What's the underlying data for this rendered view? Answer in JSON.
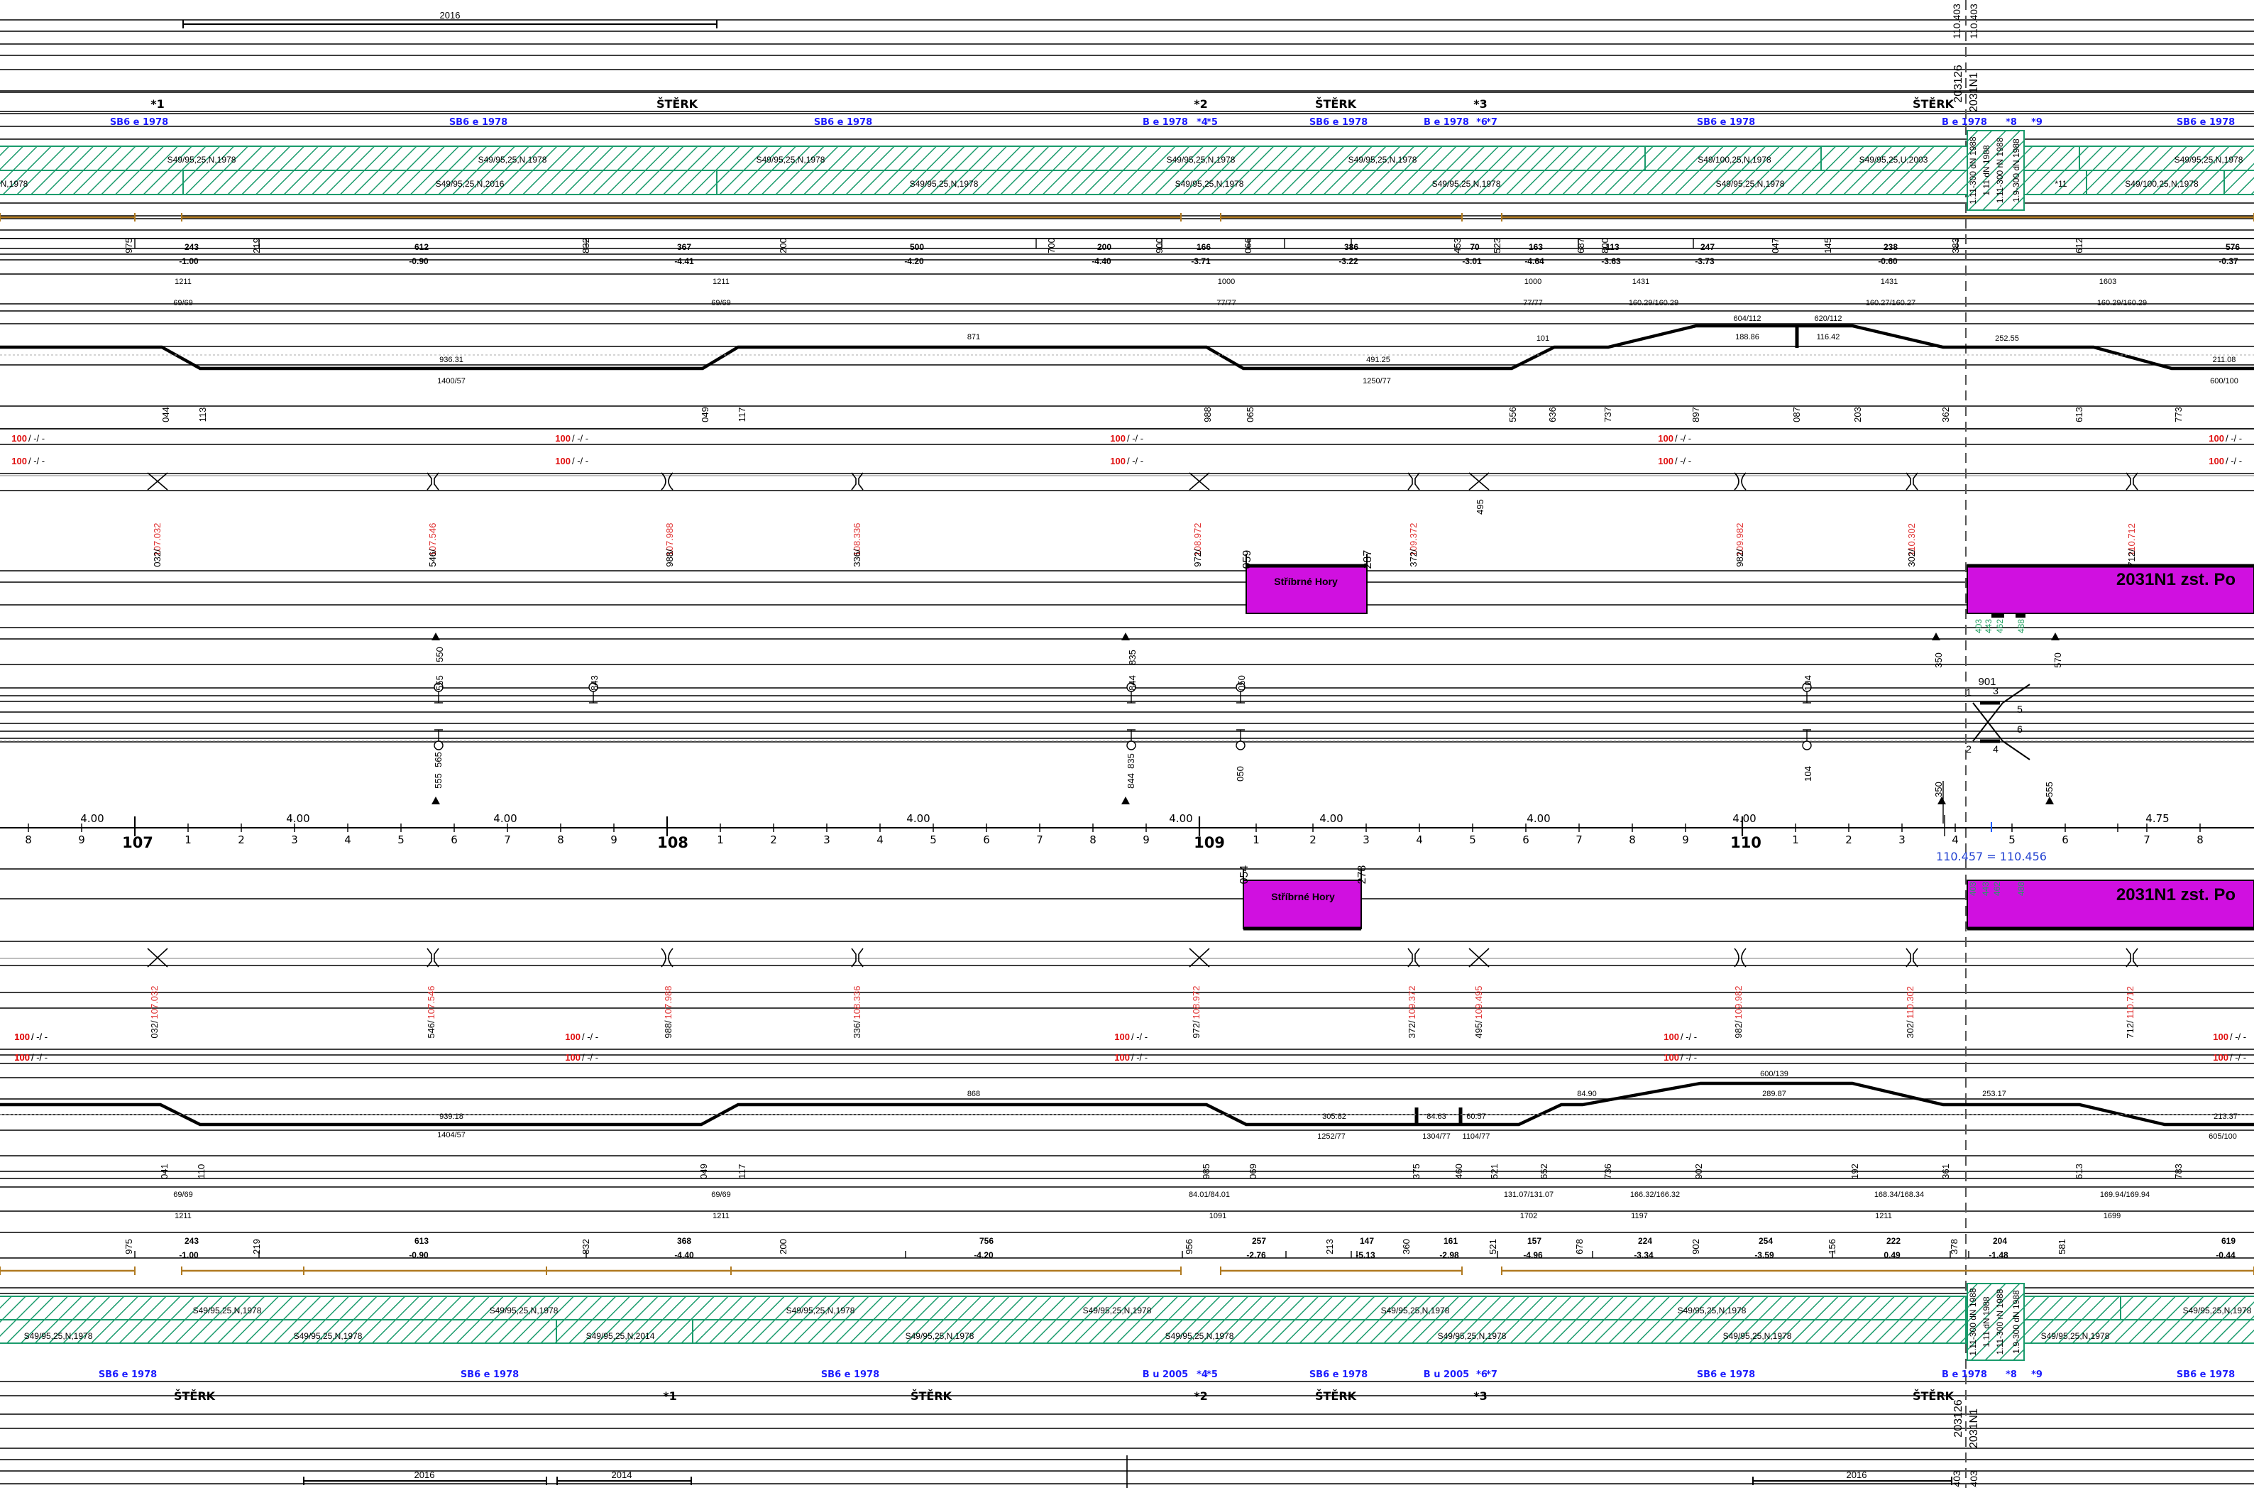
{
  "top_years": [
    {
      "text": "2016"
    }
  ],
  "top_codes": [
    {
      "text": "110.403"
    },
    {
      "text": "110.403"
    },
    {
      "text": "203126"
    },
    {
      "text": "2031N1"
    }
  ],
  "top_surface": [
    {
      "text": "*1"
    },
    {
      "text": "ŠTĚRK"
    },
    {
      "text": "*2"
    },
    {
      "text": "ŠTĚRK"
    },
    {
      "text": "*3"
    },
    {
      "text": "ŠTĚRK"
    }
  ],
  "top_sleepers": [
    {
      "text": "SB6 e 1978"
    },
    {
      "text": "SB6 e 1978"
    },
    {
      "text": "SB6 e 1978"
    },
    {
      "text": "B e 1978"
    },
    {
      "text": "*4"
    },
    {
      "text": "*5"
    },
    {
      "text": "SB6 e 1978"
    },
    {
      "text": "B e 1978"
    },
    {
      "text": "*6"
    },
    {
      "text": "*7"
    },
    {
      "text": "SB6 e 1978"
    },
    {
      "text": "B e 1978"
    },
    {
      "text": "*8"
    },
    {
      "text": "*9"
    },
    {
      "text": "SB6 e 1978"
    }
  ],
  "top_rails_a": [
    {
      "text": "S49/95,25,N,1978"
    },
    {
      "text": "S49/95,25,N,1978"
    },
    {
      "text": "S49/95,25,N,1978"
    },
    {
      "text": "S49/95,25,N,1978"
    },
    {
      "text": "S49/95,25,N,1978"
    },
    {
      "text": "S49/100,25,N,1978"
    },
    {
      "text": "S49/95,25,U,2003"
    },
    {
      "text": "S49/95,25,N,1978"
    }
  ],
  "top_rails_b": [
    {
      "text": "N,1978"
    },
    {
      "text": "S49/95,25,N,2016"
    },
    {
      "text": "S49/95,25,N,1978"
    },
    {
      "text": "S49/95,25,N,1978"
    },
    {
      "text": "S49/95,25,N,1978"
    },
    {
      "text": "S49/95,25,N,1978"
    },
    {
      "text": "*11"
    },
    {
      "text": "S49/100,25,N,1978"
    }
  ],
  "top_rot_rails": [
    {
      "text": "1.11-300 dN 1988"
    },
    {
      "text": "1.11 dN 1988"
    },
    {
      "text": "1.11-300 rN 1988"
    },
    {
      "text": "1.9-300 dN 1988"
    }
  ],
  "top_grade_km": [
    {
      "text": "975"
    },
    {
      "text": "219"
    },
    {
      "text": "832"
    },
    {
      "text": "200"
    },
    {
      "text": "700"
    },
    {
      "text": "900"
    },
    {
      "text": "066"
    },
    {
      "text": "453"
    },
    {
      "text": "523"
    },
    {
      "text": "687"
    },
    {
      "text": "800"
    },
    {
      "text": "047"
    },
    {
      "text": "145"
    },
    {
      "text": "383"
    },
    {
      "text": "612"
    }
  ],
  "top_grade_vals": [
    {
      "text": "243"
    },
    {
      "text": "-1.00"
    },
    {
      "text": "612"
    },
    {
      "text": "-0.90"
    },
    {
      "text": "367"
    },
    {
      "text": "-4.41"
    },
    {
      "text": "500"
    },
    {
      "text": "-4.20"
    },
    {
      "text": "200"
    },
    {
      "text": "-4.40"
    },
    {
      "text": "166"
    },
    {
      "text": "-3.71"
    },
    {
      "text": "386"
    },
    {
      "text": "-3.22"
    },
    {
      "text": "70"
    },
    {
      "text": "-3.01"
    },
    {
      "text": "163"
    },
    {
      "text": "-4.64"
    },
    {
      "text": "113"
    },
    {
      "text": "-3.63"
    },
    {
      "text": "247"
    },
    {
      "text": "-3.73"
    },
    {
      "text": "238"
    },
    {
      "text": "-0.60"
    },
    {
      "text": "576"
    },
    {
      "text": "-0.37"
    }
  ],
  "top_radius_a": [
    {
      "text": "1211"
    },
    {
      "text": "1211"
    },
    {
      "text": "1000"
    },
    {
      "text": "1000"
    },
    {
      "text": "1431"
    },
    {
      "text": "1431"
    },
    {
      "text": "1603"
    }
  ],
  "top_radius_b": [
    {
      "text": "69/69"
    },
    {
      "text": "69/69"
    },
    {
      "text": "77/77"
    },
    {
      "text": "77/77"
    },
    {
      "text": "160.29/160.29"
    },
    {
      "text": "160.27/160.27"
    },
    {
      "text": "160.29/160.29"
    }
  ],
  "top_curve_labels": [
    {
      "text": "871"
    },
    {
      "text": "936.31"
    },
    {
      "text": "1400/57"
    },
    {
      "text": "491.25"
    },
    {
      "text": "1250/77"
    },
    {
      "text": "101"
    },
    {
      "text": "604/112"
    },
    {
      "text": "188.86"
    },
    {
      "text": "620/112"
    },
    {
      "text": "116.42"
    },
    {
      "text": "252.55"
    },
    {
      "text": "211.08"
    },
    {
      "text": "600/100"
    }
  ],
  "top_curve_km": [
    {
      "text": "044"
    },
    {
      "text": "113"
    },
    {
      "text": "049"
    },
    {
      "text": "117"
    },
    {
      "text": "988"
    },
    {
      "text": "065"
    },
    {
      "text": "556"
    },
    {
      "text": "636"
    },
    {
      "text": "737"
    },
    {
      "text": "897"
    },
    {
      "text": "087"
    },
    {
      "text": "203"
    },
    {
      "text": "362"
    },
    {
      "text": "613"
    },
    {
      "text": "773"
    }
  ],
  "top_speed_red": [
    {
      "text": "100"
    },
    {
      "text": "100"
    },
    {
      "text": "100"
    },
    {
      "text": "100"
    },
    {
      "text": "100"
    },
    {
      "text": "100"
    },
    {
      "text": "100"
    },
    {
      "text": "100"
    },
    {
      "text": "100"
    },
    {
      "text": "100"
    }
  ],
  "top_speed_rest": [
    {
      "text": "/ -/ -"
    },
    {
      "text": "/ -/ -"
    },
    {
      "text": "/ -/ -"
    },
    {
      "text": "/ -/ -"
    },
    {
      "text": "/ -/ -"
    },
    {
      "text": "/ -/ -"
    },
    {
      "text": "/ -/ -"
    },
    {
      "text": "/ -/ -"
    },
    {
      "text": "/ -/ -"
    },
    {
      "text": "/ -/ -"
    }
  ],
  "top_objects_red": [
    {
      "text": "107.032"
    },
    {
      "text": "107.546"
    },
    {
      "text": "107.988"
    },
    {
      "text": "108.336"
    },
    {
      "text": "108.972"
    },
    {
      "text": "109.372"
    },
    {
      "text": "109.982"
    },
    {
      "text": "110.302"
    },
    {
      "text": "110.712"
    }
  ],
  "top_objects_black": [
    {
      "text": "032/"
    },
    {
      "text": "546/"
    },
    {
      "text": "988/"
    },
    {
      "text": "336/"
    },
    {
      "text": "972/"
    },
    {
      "text": "372/"
    },
    {
      "text": "495"
    },
    {
      "text": "982/"
    },
    {
      "text": "302/"
    },
    {
      "text": "712/"
    }
  ],
  "top_platform": [
    {
      "text": "059"
    },
    {
      "text": "287"
    },
    {
      "text": "Stříbrné Hory"
    },
    {
      "text": "2031N1 zst. Po"
    }
  ],
  "top_platform_green": [
    {
      "text": "403"
    },
    {
      "text": "443"
    },
    {
      "text": "462"
    },
    {
      "text": "488"
    }
  ],
  "top_signals": [
    {
      "text": "555"
    },
    {
      "text": "550"
    },
    {
      "text": "843"
    },
    {
      "text": "844"
    },
    {
      "text": "835"
    },
    {
      "text": "050"
    },
    {
      "text": "104"
    },
    {
      "text": "350"
    },
    {
      "text": "570"
    }
  ],
  "switch_labels": [
    {
      "text": "901"
    },
    {
      "text": "1"
    },
    {
      "text": "3"
    },
    {
      "text": "5"
    },
    {
      "text": "2"
    },
    {
      "text": "4"
    },
    {
      "text": "6"
    }
  ],
  "bottom_signals": [
    {
      "text": "555"
    },
    {
      "text": "565"
    },
    {
      "text": "844"
    },
    {
      "text": "835"
    },
    {
      "text": "050"
    },
    {
      "text": "104"
    },
    {
      "text": "350"
    },
    {
      "text": "555"
    }
  ],
  "gradient_mid": [
    {
      "text": "4.00"
    },
    {
      "text": "4.00"
    },
    {
      "text": "4.00"
    },
    {
      "text": "4.00"
    },
    {
      "text": "4.00"
    },
    {
      "text": "4.00"
    },
    {
      "text": "4.00"
    },
    {
      "text": "4.00"
    },
    {
      "text": "4.75"
    }
  ],
  "ruler_km": [
    {
      "text": "107"
    },
    {
      "text": "108"
    },
    {
      "text": "109"
    },
    {
      "text": "110"
    }
  ],
  "ruler_ticks": [
    {
      "text": "8"
    },
    {
      "text": "9"
    },
    {
      "text": "1"
    },
    {
      "text": "2"
    },
    {
      "text": "3"
    },
    {
      "text": "4"
    },
    {
      "text": "5"
    },
    {
      "text": "6"
    },
    {
      "text": "7"
    },
    {
      "text": "8"
    },
    {
      "text": "9"
    },
    {
      "text": "1"
    },
    {
      "text": "2"
    },
    {
      "text": "3"
    },
    {
      "text": "4"
    },
    {
      "text": "5"
    },
    {
      "text": "6"
    },
    {
      "text": "7"
    },
    {
      "text": "8"
    },
    {
      "text": "9"
    },
    {
      "text": "1"
    },
    {
      "text": "2"
    },
    {
      "text": "3"
    },
    {
      "text": "4"
    },
    {
      "text": "5"
    },
    {
      "text": "6"
    },
    {
      "text": "7"
    },
    {
      "text": "8"
    },
    {
      "text": "9"
    },
    {
      "text": "1"
    },
    {
      "text": "2"
    },
    {
      "text": "3"
    },
    {
      "text": "4"
    },
    {
      "text": "5"
    },
    {
      "text": "6"
    },
    {
      "text": "7"
    },
    {
      "text": "8"
    },
    {
      "text": "9"
    }
  ],
  "km_equation": {
    "text": "110.457 = 110.456"
  },
  "bottom_platform": [
    {
      "text": "054"
    },
    {
      "text": "278"
    },
    {
      "text": "Stříbrné Hory"
    },
    {
      "text": "2031N1 zst. Po"
    }
  ],
  "bottom_platform_green": [
    {
      "text": "403"
    },
    {
      "text": "443"
    },
    {
      "text": "462"
    },
    {
      "text": "488"
    }
  ],
  "bottom_objects_red": [
    {
      "text": "107.032"
    },
    {
      "text": "107.546"
    },
    {
      "text": "107.988"
    },
    {
      "text": "108.336"
    },
    {
      "text": "108.972"
    },
    {
      "text": "109.372"
    },
    {
      "text": "109.495"
    },
    {
      "text": "109.982"
    },
    {
      "text": "110.302"
    },
    {
      "text": "110.712"
    }
  ],
  "bottom_objects_black": [
    {
      "text": "032/"
    },
    {
      "text": "546/"
    },
    {
      "text": "988/"
    },
    {
      "text": "336/"
    },
    {
      "text": "972/"
    },
    {
      "text": "372/"
    },
    {
      "text": "495/"
    },
    {
      "text": "982/"
    },
    {
      "text": "302/"
    },
    {
      "text": "712/"
    }
  ],
  "bottom_speed_red": [
    {
      "text": "100"
    },
    {
      "text": "100"
    },
    {
      "text": "100"
    },
    {
      "text": "100"
    },
    {
      "text": "100"
    },
    {
      "text": "100"
    },
    {
      "text": "100"
    },
    {
      "text": "100"
    },
    {
      "text": "100"
    },
    {
      "text": "100"
    },
    {
      "text": "100"
    },
    {
      "text": "100"
    }
  ],
  "bottom_speed_rest": [
    {
      "text": "/ -/ -"
    },
    {
      "text": "/ -/ -"
    },
    {
      "text": "/ -/ -"
    },
    {
      "text": "/ -/ -"
    },
    {
      "text": "/ -/ -"
    },
    {
      "text": "/ -/ -"
    },
    {
      "text": "/ -/ -"
    },
    {
      "text": "/ -/ -"
    },
    {
      "text": "/ -/ -"
    },
    {
      "text": "/ -/ -"
    },
    {
      "text": "/ -/ -"
    },
    {
      "text": "/ -/ -"
    }
  ],
  "bottom_curve_labels": [
    {
      "text": "868"
    },
    {
      "text": "939.18"
    },
    {
      "text": "1404/57"
    },
    {
      "text": "305.82"
    },
    {
      "text": "1252/77"
    },
    {
      "text": "84.63"
    },
    {
      "text": "1304/77"
    },
    {
      "text": "60.57"
    },
    {
      "text": "1104/77"
    },
    {
      "text": "84.90"
    },
    {
      "text": "600/139"
    },
    {
      "text": "289.87"
    },
    {
      "text": "253.17"
    },
    {
      "text": "213.37"
    },
    {
      "text": "605/100"
    }
  ],
  "bottom_curve_km": [
    {
      "text": "041"
    },
    {
      "text": "110"
    },
    {
      "text": "049"
    },
    {
      "text": "117"
    },
    {
      "text": "985"
    },
    {
      "text": "069"
    },
    {
      "text": "375"
    },
    {
      "text": "460"
    },
    {
      "text": "521"
    },
    {
      "text": "652"
    },
    {
      "text": "736"
    },
    {
      "text": "902"
    },
    {
      "text": "192"
    },
    {
      "text": "361"
    },
    {
      "text": "613"
    },
    {
      "text": "783"
    }
  ],
  "bottom_radius_b": [
    {
      "text": "69/69"
    },
    {
      "text": "69/69"
    },
    {
      "text": "84.01/84.01"
    },
    {
      "text": "131.07/131.07"
    },
    {
      "text": "166.32/166.32"
    },
    {
      "text": "168.34/168.34"
    },
    {
      "text": "169.94/169.94"
    }
  ],
  "bottom_radius_a": [
    {
      "text": "1211"
    },
    {
      "text": "1211"
    },
    {
      "text": "1091"
    },
    {
      "text": "1702"
    },
    {
      "text": "1197"
    },
    {
      "text": "1211"
    },
    {
      "text": "1699"
    }
  ],
  "bottom_grade_km": [
    {
      "text": "975"
    },
    {
      "text": "219"
    },
    {
      "text": "832"
    },
    {
      "text": "200"
    },
    {
      "text": "956"
    },
    {
      "text": "213"
    },
    {
      "text": "360"
    },
    {
      "text": "521"
    },
    {
      "text": "678"
    },
    {
      "text": "902"
    },
    {
      "text": "156"
    },
    {
      "text": "378"
    },
    {
      "text": "581"
    }
  ],
  "bottom_grade_vals": [
    {
      "text": "243"
    },
    {
      "text": "-1.00"
    },
    {
      "text": "613"
    },
    {
      "text": "-0.90"
    },
    {
      "text": "368"
    },
    {
      "text": "-4.40"
    },
    {
      "text": "756"
    },
    {
      "text": "-4.20"
    },
    {
      "text": "257"
    },
    {
      "text": "-2.76"
    },
    {
      "text": "147"
    },
    {
      "text": "-5.13"
    },
    {
      "text": "161"
    },
    {
      "text": "-2.98"
    },
    {
      "text": "157"
    },
    {
      "text": "-4.96"
    },
    {
      "text": "224"
    },
    {
      "text": "-3.34"
    },
    {
      "text": "254"
    },
    {
      "text": "-3.59"
    },
    {
      "text": "222"
    },
    {
      "text": "0.49"
    },
    {
      "text": "204"
    },
    {
      "text": "-1.48"
    },
    {
      "text": "619"
    },
    {
      "text": "-0.44"
    }
  ],
  "bottom_rails_a": [
    {
      "text": "S49/95,25,N,1978"
    },
    {
      "text": "S49/95,25,N,1978"
    },
    {
      "text": "S49/95,25,N,1978"
    },
    {
      "text": "S49/95,25,N,1978"
    },
    {
      "text": "S49/95,25,N,1978"
    },
    {
      "text": "S49/95,25,N,1978"
    },
    {
      "text": "S49/95,25,N,1978"
    }
  ],
  "bottom_rails_b": [
    {
      "text": "S49/95,25,N,1978"
    },
    {
      "text": "S49/95,25,N,1978"
    },
    {
      "text": "S49/95,25,N,2014"
    },
    {
      "text": "S49/95,25,N,1978"
    },
    {
      "text": "S49/95,25,N,1978"
    },
    {
      "text": "S49/95,25,N,1978"
    },
    {
      "text": "S49/95,25,N,1978"
    },
    {
      "text": "S49/95,25,N,1978"
    }
  ],
  "bottom_rot_rails": [
    {
      "text": "1.11-300 dN 1988"
    },
    {
      "text": "1.11 dN 1988"
    },
    {
      "text": "1.11-300 rN 1988"
    },
    {
      "text": "1.9-300 dN 1988"
    }
  ],
  "bottom_sleepers": [
    {
      "text": "SB6 e 1978"
    },
    {
      "text": "SB6 e 1978"
    },
    {
      "text": "SB6 e 1978"
    },
    {
      "text": "B u 2005"
    },
    {
      "text": "*4"
    },
    {
      "text": "*5"
    },
    {
      "text": "SB6 e 1978"
    },
    {
      "text": "B u 2005"
    },
    {
      "text": "*6"
    },
    {
      "text": "*7"
    },
    {
      "text": "SB6 e 1978"
    },
    {
      "text": "B e 1978"
    },
    {
      "text": "*8"
    },
    {
      "text": "*9"
    },
    {
      "text": "SB6 e 1978"
    }
  ],
  "bottom_surface": [
    {
      "text": "ŠTĚRK"
    },
    {
      "text": "*1"
    },
    {
      "text": "ŠTĚRK"
    },
    {
      "text": "*2"
    },
    {
      "text": "ŠTĚRK"
    },
    {
      "text": "*3"
    },
    {
      "text": "ŠTĚRK"
    }
  ],
  "bottom_codes": [
    {
      "text": "203126"
    },
    {
      "text": "2031N1"
    },
    {
      "text": "110.403"
    },
    {
      "text": "110.403"
    }
  ],
  "bottom_years": [
    {
      "text": "2016"
    },
    {
      "text": "2014"
    },
    {
      "text": "2016"
    }
  ],
  "colors": {
    "hatch_green": "#1a9b6c",
    "sleeper_blue": "#1c1cff",
    "speed_red": "#e01010",
    "object_red": "#e03030",
    "rail_orange": "#b07a20",
    "platform_magenta": "#d010e0",
    "green_num": "#20a060"
  }
}
